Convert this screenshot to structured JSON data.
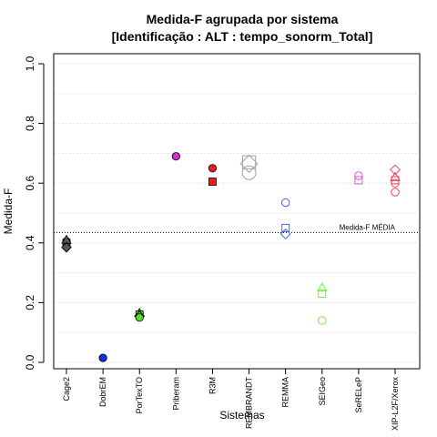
{
  "chart_data": {
    "type": "scatter",
    "title": "Medida-F agrupada por sistema",
    "subtitle": "[Identificação : ALT : tempo_sonorm_Total]",
    "xlabel": "Sistemas",
    "ylabel": "Medida-F",
    "ylim": [
      0,
      1
    ],
    "yticks": [
      "0.0",
      "0.2",
      "0.4",
      "0.6",
      "0.8",
      "1.0"
    ],
    "grid": true,
    "categories": [
      "Cage2",
      "DobrEM",
      "PorTexTO",
      "Priberam",
      "R3M",
      "REMBRANDT",
      "REMMA",
      "SEIGeo",
      "SeRELeP",
      "XIP-L2F/Xerox"
    ],
    "colors": {
      "Cage2": "#555555",
      "DobrEM": "#1030e0",
      "PorTexTO": "#55dd22",
      "Priberam": "#cc33cc",
      "R3M": "#dd2222",
      "REMBRANDT": "#a0a0a0",
      "REMMA": "#4466ee",
      "SEIGeo": "#77ee44",
      "SeRELeP": "#dd55dd",
      "XIP-L2F/Xerox": "#ee4455"
    },
    "points": [
      {
        "category": "Cage2",
        "y": 0.405,
        "shape": "circle",
        "filled": true
      },
      {
        "category": "Cage2",
        "y": 0.4,
        "shape": "square",
        "filled": true
      },
      {
        "category": "Cage2",
        "y": 0.41,
        "shape": "triangle",
        "filled": true
      },
      {
        "category": "Cage2",
        "y": 0.385,
        "shape": "diamond",
        "filled": true
      },
      {
        "category": "DobrEM",
        "y": 0.015,
        "shape": "circle",
        "filled": true
      },
      {
        "category": "PorTexTO",
        "y": 0.165,
        "shape": "triangle",
        "filled": true
      },
      {
        "category": "PorTexTO",
        "y": 0.16,
        "shape": "square",
        "filled": true
      },
      {
        "category": "PorTexTO",
        "y": 0.155,
        "shape": "diamond",
        "filled": true
      },
      {
        "category": "PorTexTO",
        "y": 0.15,
        "shape": "circle",
        "filled": true
      },
      {
        "category": "Priberam",
        "y": 0.69,
        "shape": "circle",
        "filled": true
      },
      {
        "category": "R3M",
        "y": 0.65,
        "shape": "circle",
        "filled": true
      },
      {
        "category": "R3M",
        "y": 0.605,
        "shape": "square",
        "filled": true
      },
      {
        "category": "REMBRANDT",
        "y": 0.67,
        "shape": "square",
        "filled": false,
        "large": true
      },
      {
        "category": "REMBRANDT",
        "y": 0.665,
        "shape": "diamond",
        "filled": false,
        "large": true
      },
      {
        "category": "REMBRANDT",
        "y": 0.635,
        "shape": "circle",
        "filled": false,
        "large": true
      },
      {
        "category": "REMMA",
        "y": 0.535,
        "shape": "circle",
        "filled": false
      },
      {
        "category": "REMMA",
        "y": 0.45,
        "shape": "square",
        "filled": false
      },
      {
        "category": "REMMA",
        "y": 0.43,
        "shape": "diamond",
        "filled": false
      },
      {
        "category": "SEIGeo",
        "y": 0.25,
        "shape": "triangle",
        "filled": false
      },
      {
        "category": "SEIGeo",
        "y": 0.23,
        "shape": "square",
        "filled": false
      },
      {
        "category": "SEIGeo",
        "y": 0.14,
        "shape": "circle",
        "filled": false
      },
      {
        "category": "SeRELeP",
        "y": 0.625,
        "shape": "circle",
        "filled": false
      },
      {
        "category": "SeRELeP",
        "y": 0.61,
        "shape": "square",
        "filled": false
      },
      {
        "category": "XIP-L2F/Xerox",
        "y": 0.645,
        "shape": "diamond",
        "filled": false
      },
      {
        "category": "XIP-L2F/Xerox",
        "y": 0.62,
        "shape": "triangle",
        "filled": false
      },
      {
        "category": "XIP-L2F/Xerox",
        "y": 0.61,
        "shape": "square",
        "filled": false
      },
      {
        "category": "XIP-L2F/Xerox",
        "y": 0.6,
        "shape": "circle",
        "filled": false
      },
      {
        "category": "XIP-L2F/Xerox",
        "y": 0.57,
        "shape": "circle",
        "filled": false
      }
    ],
    "reference_line": {
      "label": "Medida-F MÉDIA",
      "y": 0.435
    }
  }
}
